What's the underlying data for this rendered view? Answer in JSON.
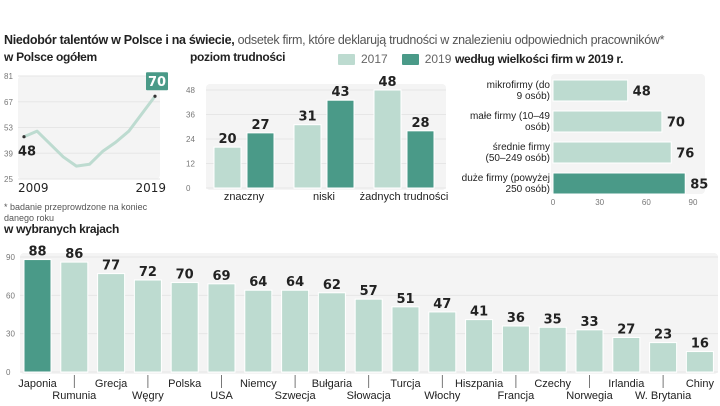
{
  "title": {
    "bold": "Niedobór talentów w Polsce i na świecie,",
    "rest": " odsetek firm, które deklarują trudności w znalezieniu odpowiednich pracowników*"
  },
  "colors": {
    "light": "#bddbd0",
    "dark": "#4a9a88",
    "panel": "#f4f4f4",
    "grid": "#e6e6e6"
  },
  "legend": {
    "items": [
      {
        "label": "2017",
        "color": "#bddbd0"
      },
      {
        "label": "2019",
        "color": "#4a9a88"
      }
    ]
  },
  "footnote": "* badanie przeprowdzone na koniec danego roku",
  "chart_data": [
    {
      "type": "line",
      "title": "w Polsce  ogółem",
      "x": [
        2009,
        2010,
        2011,
        2012,
        2013,
        2014,
        2015,
        2016,
        2017,
        2019
      ],
      "values": [
        48,
        51,
        44,
        37,
        32,
        33,
        40,
        45,
        51,
        70
      ],
      "yticks": [
        25,
        39,
        53,
        67,
        81
      ],
      "ylim": [
        25,
        81
      ],
      "xtick_labels": [
        "2009",
        "2019"
      ],
      "annotations": {
        "first": "48",
        "last": "70"
      }
    },
    {
      "type": "bar",
      "title": "poziom trudności",
      "categories": [
        "znaczny",
        "niski",
        "żadnych trudności"
      ],
      "series": [
        {
          "name": "2017",
          "values": [
            20,
            31,
            48
          ]
        },
        {
          "name": "2019",
          "values": [
            27,
            43,
            28
          ]
        }
      ],
      "yticks": [
        0,
        12,
        24,
        36,
        48
      ],
      "ylim": [
        0,
        48
      ]
    },
    {
      "type": "bar",
      "orientation": "horizontal",
      "title": "według wielkości firm w 2019 r.",
      "categories": [
        [
          "mikrofirmy (do",
          "9 osób)"
        ],
        [
          "małe firmy (10–49",
          "osób)"
        ],
        [
          "średnie firmy",
          "(50–249 osób)"
        ],
        [
          "duże firmy (powyżej",
          "250 osób)"
        ]
      ],
      "values": [
        48,
        70,
        76,
        85
      ],
      "highlight": [
        false,
        false,
        false,
        true
      ],
      "xticks": [
        0,
        30,
        60,
        90
      ],
      "xlim": [
        0,
        90
      ]
    },
    {
      "type": "bar",
      "title": "w wybranych krajach",
      "categories": [
        "Japonia",
        "Rumunia",
        "Grecja",
        "Węgry",
        "Polska",
        "USA",
        "Niemcy",
        "Szwecja",
        "Bułgaria",
        "Słowacja",
        "Turcja",
        "Włochy",
        "Hiszpania",
        "Francja",
        "Czechy",
        "Norwegia",
        "Irlandia",
        "W. Brytania",
        "Chiny"
      ],
      "values": [
        88,
        86,
        77,
        72,
        70,
        69,
        64,
        64,
        62,
        57,
        51,
        47,
        41,
        36,
        35,
        33,
        27,
        23,
        16
      ],
      "highlight_index": 0,
      "yticks": [
        0,
        30,
        60,
        90
      ],
      "ylim": [
        0,
        90
      ]
    }
  ]
}
